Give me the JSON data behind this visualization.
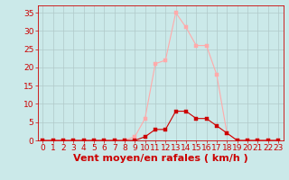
{
  "xlabel": "Vent moyen/en rafales ( km/h )",
  "background_color": "#cbe9e9",
  "grid_color": "#b0c8c8",
  "x_labels": [
    "0",
    "1",
    "2",
    "3",
    "4",
    "5",
    "6",
    "7",
    "8",
    "9",
    "10",
    "11",
    "12",
    "13",
    "14",
    "15",
    "16",
    "17",
    "18",
    "19",
    "20",
    "21",
    "22",
    "23"
  ],
  "ylim": [
    0,
    37
  ],
  "xlim": [
    -0.5,
    23.5
  ],
  "yticks": [
    0,
    5,
    10,
    15,
    20,
    25,
    30,
    35
  ],
  "line1_x": [
    0,
    1,
    2,
    3,
    4,
    5,
    6,
    7,
    8,
    9,
    10,
    11,
    12,
    13,
    14,
    15,
    16,
    17,
    18,
    19,
    20,
    21,
    22,
    23
  ],
  "line1_y": [
    0,
    0,
    0,
    0,
    0,
    0,
    0,
    0,
    0,
    1,
    6,
    21,
    22,
    35,
    31,
    26,
    26,
    18,
    2,
    0,
    0,
    0,
    0,
    0
  ],
  "line1_color": "#ffaaaa",
  "line2_x": [
    0,
    1,
    2,
    3,
    4,
    5,
    6,
    7,
    8,
    9,
    10,
    11,
    12,
    13,
    14,
    15,
    16,
    17,
    18,
    19,
    20,
    21,
    22,
    23
  ],
  "line2_y": [
    0,
    0,
    0,
    0,
    0,
    0,
    0,
    0,
    0,
    0,
    1,
    3,
    3,
    8,
    8,
    6,
    6,
    4,
    2,
    0,
    0,
    0,
    0,
    0
  ],
  "line2_color": "#cc0000",
  "marker_size": 2.5,
  "tick_color": "#cc0000",
  "tick_fontsize": 6.5,
  "xlabel_fontsize": 8,
  "line_width": 0.8
}
